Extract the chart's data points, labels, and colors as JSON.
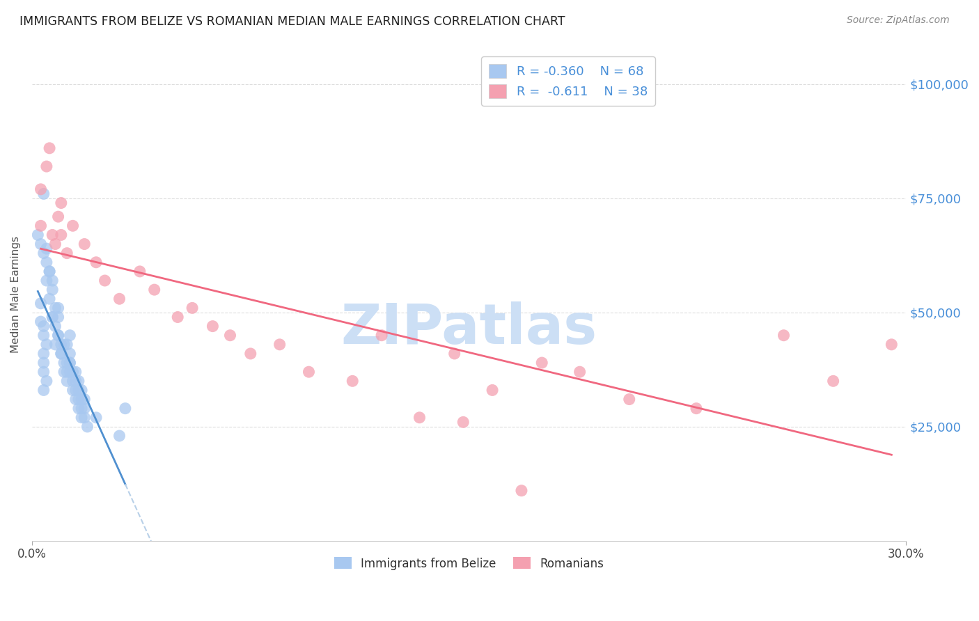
{
  "title": "IMMIGRANTS FROM BELIZE VS ROMANIAN MEDIAN MALE EARNINGS CORRELATION CHART",
  "source": "Source: ZipAtlas.com",
  "ylabel": "Median Male Earnings",
  "y_ticks": [
    25000,
    50000,
    75000,
    100000
  ],
  "y_tick_labels": [
    "$25,000",
    "$50,000",
    "$75,000",
    "$100,000"
  ],
  "x_min": 0.0,
  "x_max": 0.3,
  "y_min": 0,
  "y_max": 108000,
  "belize_R": "-0.360",
  "belize_N": "68",
  "romanian_R": "-0.611",
  "romanian_N": "38",
  "belize_color": "#a8c8f0",
  "romanian_color": "#f4a0b0",
  "belize_line_color": "#5090d0",
  "romanian_line_color": "#f06880",
  "dashed_line_color": "#b8d0e8",
  "watermark": "ZIPatlas",
  "watermark_color": "#ccdff5",
  "belize_points": [
    [
      0.002,
      67000
    ],
    [
      0.004,
      76000
    ],
    [
      0.003,
      65000
    ],
    [
      0.004,
      63000
    ],
    [
      0.005,
      64000
    ],
    [
      0.005,
      61000
    ],
    [
      0.006,
      59000
    ],
    [
      0.005,
      57000
    ],
    [
      0.007,
      55000
    ],
    [
      0.006,
      53000
    ],
    [
      0.008,
      51000
    ],
    [
      0.007,
      49000
    ],
    [
      0.009,
      51000
    ],
    [
      0.008,
      47000
    ],
    [
      0.009,
      45000
    ],
    [
      0.008,
      43000
    ],
    [
      0.009,
      49000
    ],
    [
      0.009,
      45000
    ],
    [
      0.01,
      43000
    ],
    [
      0.01,
      41000
    ],
    [
      0.011,
      43000
    ],
    [
      0.01,
      41000
    ],
    [
      0.011,
      39000
    ],
    [
      0.011,
      37000
    ],
    [
      0.012,
      43000
    ],
    [
      0.012,
      39000
    ],
    [
      0.012,
      37000
    ],
    [
      0.012,
      35000
    ],
    [
      0.013,
      45000
    ],
    [
      0.013,
      41000
    ],
    [
      0.013,
      39000
    ],
    [
      0.013,
      37000
    ],
    [
      0.013,
      39000
    ],
    [
      0.014,
      37000
    ],
    [
      0.014,
      35000
    ],
    [
      0.014,
      33000
    ],
    [
      0.015,
      37000
    ],
    [
      0.015,
      35000
    ],
    [
      0.015,
      33000
    ],
    [
      0.015,
      31000
    ],
    [
      0.016,
      35000
    ],
    [
      0.016,
      33000
    ],
    [
      0.016,
      31000
    ],
    [
      0.016,
      29000
    ],
    [
      0.017,
      33000
    ],
    [
      0.017,
      31000
    ],
    [
      0.017,
      29000
    ],
    [
      0.017,
      27000
    ],
    [
      0.018,
      31000
    ],
    [
      0.018,
      29000
    ],
    [
      0.018,
      27000
    ],
    [
      0.019,
      25000
    ],
    [
      0.004,
      47000
    ],
    [
      0.004,
      45000
    ],
    [
      0.005,
      43000
    ],
    [
      0.004,
      41000
    ],
    [
      0.004,
      39000
    ],
    [
      0.004,
      37000
    ],
    [
      0.005,
      35000
    ],
    [
      0.004,
      33000
    ],
    [
      0.022,
      27000
    ],
    [
      0.03,
      23000
    ],
    [
      0.032,
      29000
    ],
    [
      0.003,
      52000
    ],
    [
      0.003,
      48000
    ],
    [
      0.007,
      57000
    ],
    [
      0.006,
      59000
    ],
    [
      0.007,
      49000
    ]
  ],
  "romanian_points": [
    [
      0.003,
      69000
    ],
    [
      0.005,
      82000
    ],
    [
      0.007,
      67000
    ],
    [
      0.008,
      65000
    ],
    [
      0.009,
      71000
    ],
    [
      0.01,
      67000
    ],
    [
      0.012,
      63000
    ],
    [
      0.014,
      69000
    ],
    [
      0.018,
      65000
    ],
    [
      0.022,
      61000
    ],
    [
      0.025,
      57000
    ],
    [
      0.03,
      53000
    ],
    [
      0.037,
      59000
    ],
    [
      0.042,
      55000
    ],
    [
      0.05,
      49000
    ],
    [
      0.055,
      51000
    ],
    [
      0.062,
      47000
    ],
    [
      0.068,
      45000
    ],
    [
      0.075,
      41000
    ],
    [
      0.085,
      43000
    ],
    [
      0.095,
      37000
    ],
    [
      0.11,
      35000
    ],
    [
      0.12,
      45000
    ],
    [
      0.145,
      41000
    ],
    [
      0.158,
      33000
    ],
    [
      0.175,
      39000
    ],
    [
      0.205,
      31000
    ],
    [
      0.228,
      29000
    ],
    [
      0.258,
      45000
    ],
    [
      0.275,
      35000
    ],
    [
      0.295,
      43000
    ],
    [
      0.003,
      77000
    ],
    [
      0.006,
      86000
    ],
    [
      0.133,
      27000
    ],
    [
      0.01,
      74000
    ],
    [
      0.188,
      37000
    ],
    [
      0.148,
      26000
    ],
    [
      0.168,
      11000
    ]
  ]
}
